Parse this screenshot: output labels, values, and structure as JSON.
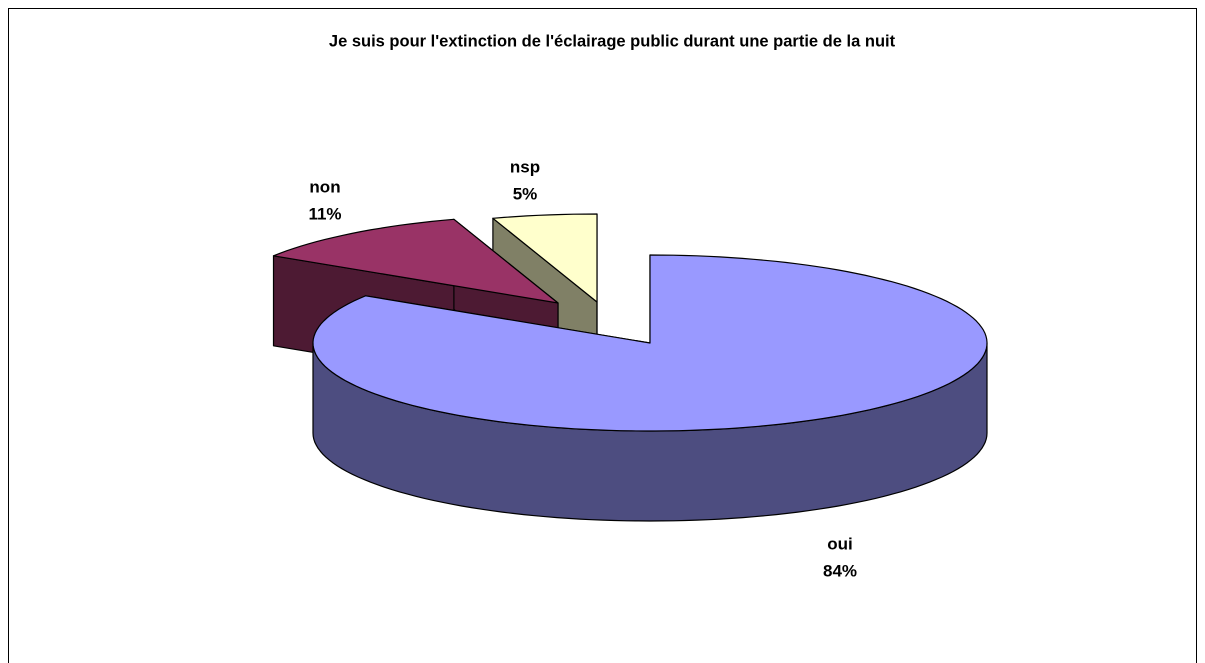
{
  "chart_data": {
    "type": "pie",
    "title": "Je suis pour l'extinction de l'éclairage public durant une partie de la nuit",
    "categories": [
      "oui",
      "non",
      "nsp"
    ],
    "values": [
      84,
      11,
      5
    ],
    "value_labels": [
      "84%",
      "11%",
      "5%"
    ],
    "colors": [
      "#9999ff",
      "#993366",
      "#ffffcc"
    ]
  }
}
